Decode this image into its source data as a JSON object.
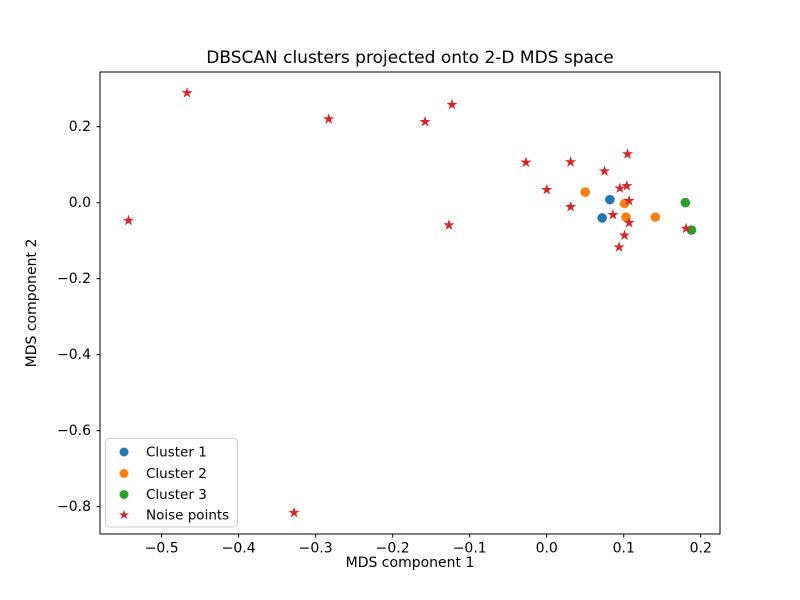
{
  "figure": {
    "background": "#ffffff"
  },
  "chart_data": {
    "type": "scatter",
    "title": "DBSCAN clusters projected onto 2-D MDS space",
    "xlabel": "MDS component 1",
    "ylabel": "MDS component 2",
    "xlim": [
      -0.58,
      0.225
    ],
    "ylim": [
      -0.872,
      0.344
    ],
    "grid": false,
    "xticks": [
      {
        "value": -0.5,
        "label": "−0.5"
      },
      {
        "value": -0.4,
        "label": "−0.4"
      },
      {
        "value": -0.3,
        "label": "−0.3"
      },
      {
        "value": -0.2,
        "label": "−0.2"
      },
      {
        "value": -0.1,
        "label": "−0.1"
      },
      {
        "value": 0.0,
        "label": "0.0"
      },
      {
        "value": 0.1,
        "label": "0.1"
      },
      {
        "value": 0.2,
        "label": "0.2"
      }
    ],
    "yticks": [
      {
        "value": 0.2,
        "label": "0.2"
      },
      {
        "value": 0.0,
        "label": "0.0"
      },
      {
        "value": -0.2,
        "label": "−0.2"
      },
      {
        "value": -0.4,
        "label": "−0.4"
      },
      {
        "value": -0.6,
        "label": "−0.6"
      },
      {
        "value": -0.8,
        "label": "−0.8"
      }
    ],
    "legend": {
      "position": "lower left",
      "border_color": "#cccccc",
      "background": "#ffffff"
    },
    "series": [
      {
        "name": "Cluster 1",
        "marker": "circle",
        "color": "#1f77b4",
        "points": [
          [
            0.082,
            0.008
          ],
          [
            0.072,
            -0.04
          ]
        ]
      },
      {
        "name": "Cluster 2",
        "marker": "circle",
        "color": "#ff7f0e",
        "points": [
          [
            0.05,
            0.028
          ],
          [
            0.101,
            -0.002
          ],
          [
            0.103,
            -0.038
          ],
          [
            0.141,
            -0.038
          ]
        ]
      },
      {
        "name": "Cluster 3",
        "marker": "circle",
        "color": "#2ca02c",
        "points": [
          [
            0.18,
            0.0
          ],
          [
            0.188,
            -0.072
          ]
        ]
      },
      {
        "name": "Noise points",
        "marker": "star",
        "color": "#d62728",
        "points": [
          [
            -0.467,
            0.289
          ],
          [
            -0.283,
            0.22
          ],
          [
            -0.543,
            -0.047
          ],
          [
            -0.328,
            -0.816
          ],
          [
            -0.158,
            0.213
          ],
          [
            -0.123,
            0.258
          ],
          [
            -0.127,
            -0.059
          ],
          [
            -0.027,
            0.106
          ],
          [
            0.0,
            0.034
          ],
          [
            0.031,
            0.107
          ],
          [
            0.031,
            -0.011
          ],
          [
            0.075,
            0.083
          ],
          [
            0.095,
            0.038
          ],
          [
            0.104,
            0.044
          ],
          [
            0.105,
            0.128
          ],
          [
            0.107,
            0.005
          ],
          [
            0.086,
            -0.032
          ],
          [
            0.107,
            -0.053
          ],
          [
            0.101,
            -0.086
          ],
          [
            0.094,
            -0.117
          ],
          [
            0.181,
            -0.068
          ]
        ]
      }
    ]
  }
}
